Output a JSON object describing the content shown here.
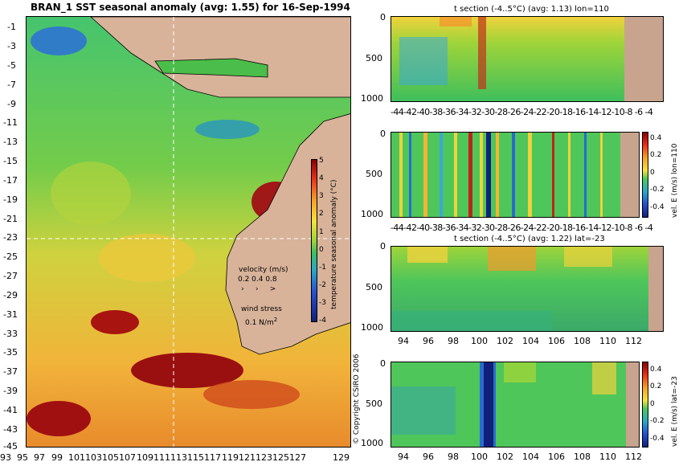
{
  "map": {
    "title": "BRAN_1  SST seasonal anomaly (avg: 1.55) for 16-Sep-1994",
    "yticks": [
      "-1",
      "-3",
      "-5",
      "-7",
      "-9",
      "-11",
      "-13",
      "-15",
      "-17",
      "-19",
      "-21",
      "-23",
      "-25",
      "-27",
      "-29",
      "-31",
      "-33",
      "-35",
      "-37",
      "-39",
      "-41",
      "-43",
      "-45"
    ],
    "xticks": [
      "93",
      "95",
      "97",
      "99",
      "101",
      "103",
      "105",
      "107",
      "109",
      "111",
      "113",
      "115",
      "117",
      "119",
      "121",
      "123",
      "125",
      "127",
      "129"
    ],
    "colorbar": {
      "label": "temperature seasonal anomaly (°C)",
      "ticks": [
        "5",
        "4",
        "3",
        "2",
        "1",
        "0",
        "-1",
        "-2",
        "-3",
        "-4"
      ]
    },
    "legend": {
      "velocity_title": "velocity (m/s)",
      "velocity_values": "0.2 0.4 0.8",
      "wind_title": "wind stress",
      "wind_value": "0.1 N/m",
      "wind_exp": "2"
    },
    "copyright": "© Copyright CSIRO 2006"
  },
  "panels": [
    {
      "title": "t section (-4..5°C) (avg: 1.13) lon=110",
      "yticks": [
        "0",
        "500",
        "1000"
      ],
      "xticks": [
        "-44",
        "-42",
        "-40",
        "-38",
        "-36",
        "-34",
        "-32",
        "-30",
        "-28",
        "-26",
        "-24",
        "-22",
        "-20",
        "-18",
        "-16",
        "-14",
        "-12",
        "-10",
        "-8",
        "-6",
        "-4"
      ]
    },
    {
      "title": "",
      "yticks": [
        "0",
        "500",
        "1000"
      ],
      "xticks": [
        "-44",
        "-42",
        "-40",
        "-38",
        "-36",
        "-34",
        "-32",
        "-30",
        "-28",
        "-26",
        "-24",
        "-22",
        "-20",
        "-18",
        "-16",
        "-14",
        "-12",
        "-10",
        "-8",
        "-6",
        "-4"
      ],
      "colorbar_label": "vel. E (m/s) lon=110",
      "colorbar_ticks": [
        "0.4",
        "0.2",
        "0",
        "-0.2",
        "-0.4"
      ]
    },
    {
      "title": "t section (-4..5°C) (avg: 1.22) lat=-23",
      "yticks": [
        "0",
        "500",
        "1000"
      ],
      "xticks": [
        "94",
        "96",
        "98",
        "100",
        "102",
        "104",
        "106",
        "108",
        "110",
        "112"
      ]
    },
    {
      "title": "",
      "yticks": [
        "0",
        "500",
        "1000"
      ],
      "xticks": [
        "94",
        "96",
        "98",
        "100",
        "102",
        "104",
        "106",
        "108",
        "110",
        "112"
      ],
      "colorbar_label": "vel. E (m/s) lat=-23",
      "colorbar_ticks": [
        "0.4",
        "0.2",
        "0",
        "-0.2",
        "-0.4"
      ]
    }
  ],
  "colors": {
    "land": "#d8b39a",
    "ocean_mid": "#5cc85a",
    "warm": "#f0d23c",
    "hot": "#a01010",
    "cold": "#1a3ca8",
    "vector": "#ff33ff"
  },
  "chart_data": [
    {
      "type": "heatmap",
      "title": "BRAN_1  SST seasonal anomaly (avg: 1.55) for 16-Sep-1994",
      "xlabel": "",
      "ylabel": "",
      "xlim": [
        93,
        130
      ],
      "ylim": [
        -45,
        0
      ],
      "colorbar_range": [
        -4,
        5
      ],
      "colorbar_label": "temperature seasonal anomaly (°C)"
    },
    {
      "type": "heatmap",
      "title": "t section (-4..5°C) (avg: 1.13) lon=110",
      "xlim": [
        -45,
        -3
      ],
      "ylim": [
        1050,
        0
      ]
    },
    {
      "type": "heatmap",
      "title": "",
      "xlim": [
        -45,
        -3
      ],
      "ylim": [
        1050,
        0
      ],
      "colorbar_range": [
        -0.4,
        0.4
      ],
      "colorbar_label": "vel. E (m/s) lon=110"
    },
    {
      "type": "heatmap",
      "title": "t section (-4..5°C) (avg: 1.22) lat=-23",
      "xlim": [
        93,
        114
      ],
      "ylim": [
        1050,
        0
      ]
    },
    {
      "type": "heatmap",
      "title": "",
      "xlim": [
        93,
        114
      ],
      "ylim": [
        1050,
        0
      ],
      "colorbar_range": [
        -0.4,
        0.4
      ],
      "colorbar_label": "vel. E (m/s) lat=-23"
    }
  ]
}
